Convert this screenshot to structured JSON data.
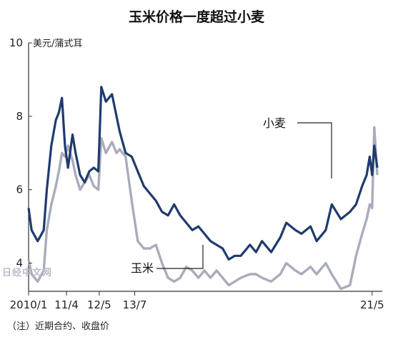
{
  "chart_data": {
    "type": "line",
    "title": "玉米价格一度超过小麦",
    "ylabel": "美元/蒲式耳",
    "ylim": [
      3,
      10
    ],
    "yticks": [
      "4",
      "6",
      "8",
      "10"
    ],
    "xlim": [
      2010.0,
      2021.5
    ],
    "xtick_labels": [
      "2010/1",
      "11/4",
      "12/5",
      "13/7",
      "21/5"
    ],
    "xtick_positions": [
      2010.0,
      2011.25,
      2012.33,
      2013.5,
      2021.33
    ],
    "note": "（注）近期合约、收盘价",
    "watermark": "日经中文网",
    "series": [
      {
        "name": "小麦",
        "color": "#1f3b6e",
        "x": [
          2010.0,
          2010.1,
          2010.3,
          2010.5,
          2010.6,
          2010.75,
          2010.9,
          2011.0,
          2011.1,
          2011.2,
          2011.3,
          2011.45,
          2011.55,
          2011.7,
          2011.85,
          2012.0,
          2012.15,
          2012.3,
          2012.4,
          2012.55,
          2012.75,
          2012.9,
          2013.0,
          2013.2,
          2013.4,
          2013.6,
          2013.8,
          2014.0,
          2014.2,
          2014.4,
          2014.6,
          2014.8,
          2015.0,
          2015.2,
          2015.4,
          2015.6,
          2015.8,
          2016.0,
          2016.2,
          2016.4,
          2016.6,
          2016.8,
          2017.0,
          2017.3,
          2017.5,
          2017.7,
          2018.0,
          2018.3,
          2018.5,
          2018.8,
          2019.0,
          2019.3,
          2019.5,
          2019.8,
          2020.0,
          2020.3,
          2020.6,
          2020.8,
          2021.0,
          2021.15,
          2021.25,
          2021.33,
          2021.4,
          2021.5
        ],
        "y": [
          5.5,
          4.9,
          4.6,
          4.9,
          6.0,
          7.2,
          7.9,
          8.1,
          8.5,
          7.2,
          6.6,
          7.5,
          7.0,
          6.4,
          6.2,
          6.5,
          6.6,
          6.5,
          8.8,
          8.4,
          8.6,
          8.0,
          7.6,
          7.0,
          6.9,
          6.5,
          6.1,
          5.9,
          5.7,
          5.4,
          5.3,
          5.6,
          5.3,
          5.1,
          4.9,
          5.0,
          4.8,
          4.6,
          4.5,
          4.4,
          4.1,
          4.2,
          4.2,
          4.5,
          4.3,
          4.6,
          4.3,
          4.7,
          5.1,
          4.9,
          4.8,
          5.0,
          4.6,
          4.9,
          5.6,
          5.2,
          5.4,
          5.6,
          6.1,
          6.4,
          6.9,
          6.4,
          7.2,
          6.6
        ]
      },
      {
        "name": "玉米",
        "color": "#a9acbb",
        "x": [
          2010.0,
          2010.1,
          2010.3,
          2010.5,
          2010.6,
          2010.75,
          2010.9,
          2011.0,
          2011.1,
          2011.2,
          2011.3,
          2011.45,
          2011.55,
          2011.7,
          2011.85,
          2012.0,
          2012.15,
          2012.3,
          2012.4,
          2012.55,
          2012.75,
          2012.9,
          2013.0,
          2013.2,
          2013.4,
          2013.6,
          2013.8,
          2014.0,
          2014.2,
          2014.4,
          2014.6,
          2014.8,
          2015.0,
          2015.2,
          2015.4,
          2015.6,
          2015.8,
          2016.0,
          2016.2,
          2016.4,
          2016.6,
          2016.8,
          2017.0,
          2017.3,
          2017.5,
          2017.7,
          2018.0,
          2018.3,
          2018.5,
          2018.8,
          2019.0,
          2019.3,
          2019.5,
          2019.8,
          2020.0,
          2020.3,
          2020.6,
          2020.8,
          2021.0,
          2021.15,
          2021.25,
          2021.33,
          2021.4,
          2021.5
        ],
        "y": [
          4.1,
          3.7,
          3.5,
          3.8,
          4.9,
          5.6,
          6.1,
          6.5,
          7.0,
          6.9,
          7.2,
          6.8,
          6.4,
          6.0,
          6.2,
          6.4,
          6.1,
          6.0,
          7.4,
          7.0,
          7.3,
          7.0,
          7.1,
          6.9,
          5.7,
          4.6,
          4.4,
          4.4,
          4.5,
          4.0,
          3.6,
          3.5,
          3.6,
          3.9,
          3.8,
          3.6,
          3.8,
          3.6,
          3.8,
          3.6,
          3.4,
          3.5,
          3.6,
          3.7,
          3.7,
          3.6,
          3.5,
          3.7,
          4.0,
          3.8,
          3.7,
          3.9,
          3.7,
          4.0,
          3.7,
          3.3,
          3.4,
          4.2,
          4.8,
          5.2,
          5.6,
          5.5,
          7.7,
          6.4
        ]
      }
    ]
  }
}
